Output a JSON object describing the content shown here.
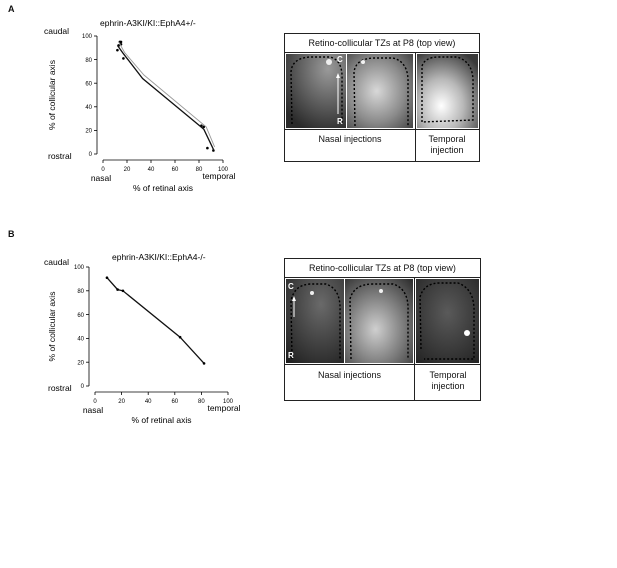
{
  "panels": [
    {
      "letter": "A",
      "chart_title": "ephrin-A3KI/KI::EphA4+/-",
      "tz": {
        "header": "Retino-collicular TZs at P8 (top view)",
        "nasal_label": "Nasal injections",
        "temporal_label": "Temporal injection",
        "marker_c": "C",
        "marker_r": "R"
      }
    },
    {
      "letter": "B",
      "chart_title": "ephrin-A3KI/KI::EphA4-/-",
      "tz": {
        "header": "Retino-collicular TZs at P8 (top view)",
        "nasal_label": "Nasal injections",
        "temporal_label": "Temporal injection",
        "marker_c": "C",
        "marker_r": "R"
      }
    }
  ],
  "chart_data": [
    {
      "type": "scatter",
      "title": "ephrin-A3KI/KI::EphA4+/-",
      "xlabel": "% of retinal axis",
      "ylabel": "% of collicular axis",
      "x_end_labels": [
        "nasal",
        "temporal"
      ],
      "y_end_labels": [
        "caudal",
        "rostral"
      ],
      "xlim": [
        0,
        100
      ],
      "ylim": [
        0,
        100
      ],
      "xticks": [
        0,
        20,
        40,
        60,
        80,
        100
      ],
      "yticks": [
        0,
        20,
        40,
        60,
        80,
        100
      ],
      "series": [
        {
          "style": "points",
          "x": [
            12,
            13,
            14,
            15,
            15,
            17,
            82,
            84,
            87,
            92
          ],
          "y": [
            88,
            92,
            95,
            93,
            95,
            81,
            24,
            23,
            5,
            3
          ]
        },
        {
          "style": "line-dark",
          "x": [
            12,
            17,
            33,
            84,
            92
          ],
          "y": [
            92,
            85,
            64,
            21,
            4
          ]
        },
        {
          "style": "line-light",
          "x": [
            13,
            18,
            34,
            86,
            93
          ],
          "y": [
            95,
            86,
            67,
            23,
            6
          ]
        }
      ]
    },
    {
      "type": "line",
      "title": "ephrin-A3KI/KI::EphA4-/-",
      "xlabel": "% of retinal axis",
      "ylabel": "% of collicular axis",
      "x_end_labels": [
        "nasal",
        "temporal"
      ],
      "y_end_labels": [
        "caudal",
        "rostral"
      ],
      "xlim": [
        0,
        100
      ],
      "ylim": [
        0,
        100
      ],
      "xticks": [
        0,
        20,
        40,
        60,
        80,
        100
      ],
      "yticks": [
        0,
        20,
        40,
        60,
        80,
        100
      ],
      "series": [
        {
          "style": "line-points",
          "x": [
            9,
            17,
            21,
            64,
            82
          ],
          "y": [
            91,
            81,
            80,
            41,
            19
          ]
        }
      ]
    }
  ]
}
